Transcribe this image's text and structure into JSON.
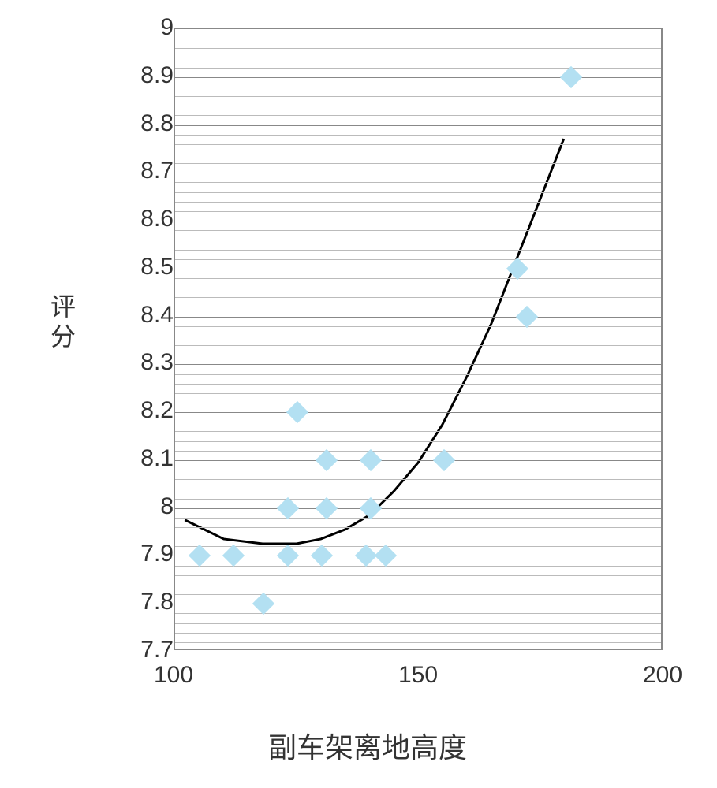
{
  "chart": {
    "type": "scatter",
    "y_axis_label": "评\n分",
    "x_axis_label": "副车架离地高度",
    "xlim": [
      100,
      200
    ],
    "ylim": [
      7.7,
      9
    ],
    "x_ticks": [
      100,
      150,
      200
    ],
    "y_ticks": [
      7.7,
      7.8,
      7.9,
      8,
      8.1,
      8.2,
      8.3,
      8.4,
      8.5,
      8.6,
      8.7,
      8.8,
      8.9,
      9
    ],
    "y_minor_per_major": 5,
    "background_color": "#ffffff",
    "grid_major_color": "#888888",
    "grid_minor_color": "#bbbbbb",
    "axis_color": "#888888",
    "text_color": "#333333",
    "label_fontsize": 32,
    "xlabel_fontsize": 36,
    "tick_fontsize": 30,
    "point_color": "#b3e0f2",
    "point_size": 20,
    "curve_color": "#000000",
    "curve_width": 3,
    "points": [
      {
        "x": 105,
        "y": 7.9
      },
      {
        "x": 112,
        "y": 7.9
      },
      {
        "x": 118,
        "y": 7.8
      },
      {
        "x": 123,
        "y": 7.9
      },
      {
        "x": 123,
        "y": 8.0
      },
      {
        "x": 125,
        "y": 8.2
      },
      {
        "x": 130,
        "y": 7.9
      },
      {
        "x": 131,
        "y": 8.0
      },
      {
        "x": 131,
        "y": 8.1
      },
      {
        "x": 139,
        "y": 7.9
      },
      {
        "x": 140,
        "y": 8.0
      },
      {
        "x": 140,
        "y": 8.1
      },
      {
        "x": 143,
        "y": 7.9
      },
      {
        "x": 155,
        "y": 8.1
      },
      {
        "x": 170,
        "y": 8.5
      },
      {
        "x": 172,
        "y": 8.4
      },
      {
        "x": 181,
        "y": 8.9
      }
    ],
    "curve_points": [
      {
        "x": 102,
        "y": 7.97
      },
      {
        "x": 110,
        "y": 7.93
      },
      {
        "x": 118,
        "y": 7.92
      },
      {
        "x": 125,
        "y": 7.92
      },
      {
        "x": 130,
        "y": 7.93
      },
      {
        "x": 135,
        "y": 7.95
      },
      {
        "x": 140,
        "y": 7.98
      },
      {
        "x": 145,
        "y": 8.03
      },
      {
        "x": 150,
        "y": 8.09
      },
      {
        "x": 155,
        "y": 8.17
      },
      {
        "x": 160,
        "y": 8.27
      },
      {
        "x": 165,
        "y": 8.38
      },
      {
        "x": 170,
        "y": 8.51
      },
      {
        "x": 175,
        "y": 8.64
      },
      {
        "x": 180,
        "y": 8.77
      }
    ]
  }
}
